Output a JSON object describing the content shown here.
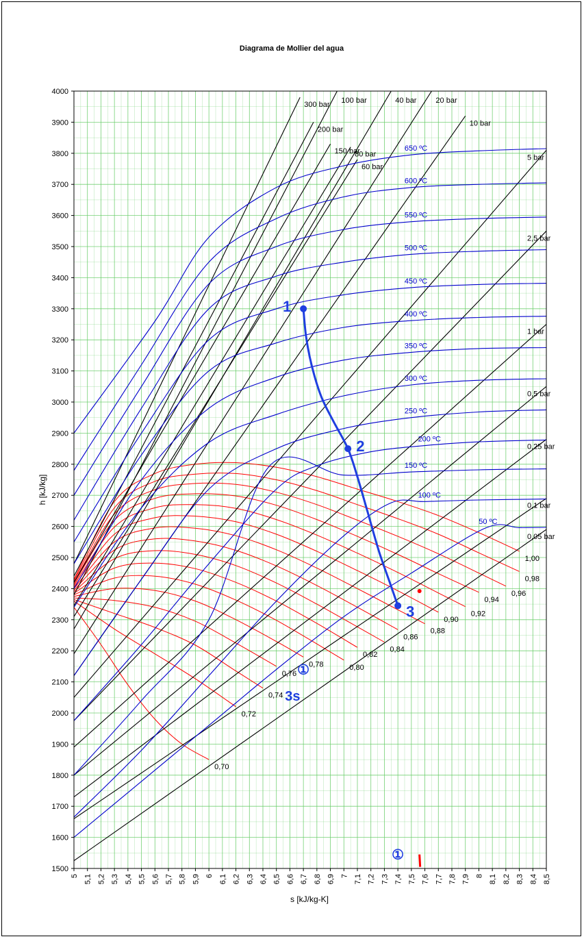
{
  "chart_data": {
    "type": "line",
    "title": "Diagrama de Mollier del agua",
    "xlabel": "s [kJ/kg-K]",
    "ylabel": "h [kJ/kg]",
    "xlim": [
      5,
      8.5
    ],
    "ylim": [
      1500,
      4000
    ],
    "x_ticks": [
      "5",
      "5,1",
      "5,2",
      "5,3",
      "5,4",
      "5,5",
      "5,6",
      "5,7",
      "5,8",
      "5,9",
      "6",
      "6,1",
      "6,2",
      "6,3",
      "6,4",
      "6,5",
      "6,6",
      "6,7",
      "6,8",
      "6,9",
      "7",
      "7,1",
      "7,2",
      "7,3",
      "7,4",
      "7,5",
      "7,6",
      "7,7",
      "7,8",
      "7,9",
      "8",
      "8,1",
      "8,2",
      "8,3",
      "8,4",
      "8,5"
    ],
    "y_ticks": [
      "1500",
      "1600",
      "1700",
      "1800",
      "1900",
      "2000",
      "2100",
      "2200",
      "2300",
      "2400",
      "2500",
      "2600",
      "2700",
      "2800",
      "2900",
      "3000",
      "3100",
      "3200",
      "3300",
      "3400",
      "3500",
      "3600",
      "3700",
      "3800",
      "3900",
      "4000"
    ],
    "grid": true,
    "colors": {
      "isobar": "#000000",
      "isotherm": "#0000cc",
      "quality": "#ff0000",
      "grid": "#66cc66",
      "process": "#1f3fe0"
    },
    "isobars": [
      {
        "name": "300 bar",
        "label": "300 bar",
        "x": [
          5.0,
          6.675
        ],
        "y": [
          2480,
          3980
        ]
      },
      {
        "name": "200 bar",
        "label": "200 bar",
        "x": [
          5.0,
          6.775
        ],
        "y": [
          2440,
          3900
        ]
      },
      {
        "name": "150 bar",
        "label": "150 bar",
        "x": [
          5.0,
          6.9
        ],
        "y": [
          2420,
          3830
        ]
      },
      {
        "name": "100 bar",
        "label": "100 bar",
        "x": [
          5.0,
          6.95
        ],
        "y": [
          2380,
          4000
        ]
      },
      {
        "name": "80 bar",
        "label": "80 bar",
        "x": [
          5.0,
          7.05
        ],
        "y": [
          2345,
          3820
        ]
      },
      {
        "name": "60 bar",
        "label": "60 bar",
        "x": [
          5.0,
          7.1
        ],
        "y": [
          2310,
          3780
        ]
      },
      {
        "name": "40 bar",
        "label": "40 bar",
        "x": [
          5.0,
          7.35
        ],
        "y": [
          2270,
          4000
        ]
      },
      {
        "name": "20 bar",
        "label": "20 bar",
        "x": [
          5.0,
          7.65
        ],
        "y": [
          2190,
          4000
        ]
      },
      {
        "name": "10 bar",
        "label": "10 bar",
        "x": [
          5.0,
          7.9
        ],
        "y": [
          2120,
          3920
        ]
      },
      {
        "name": "5 bar",
        "label": "5 bar",
        "x": [
          5.0,
          8.5
        ],
        "y": [
          2050,
          3810
        ]
      },
      {
        "name": "2,5 bar",
        "label": "2,5 bar",
        "x": [
          5.0,
          8.5
        ],
        "y": [
          1975,
          3550
        ]
      },
      {
        "name": "1 bar",
        "label": "1 bar",
        "x": [
          5.0,
          8.5
        ],
        "y": [
          1890,
          3250
        ]
      },
      {
        "name": "0,5 bar",
        "label": "0,5 bar",
        "x": [
          5.0,
          8.5
        ],
        "y": [
          1800,
          3050
        ]
      },
      {
        "name": "0,25 bar",
        "label": "0,25 bar",
        "x": [
          5.0,
          8.5
        ],
        "y": [
          1730,
          2880
        ]
      },
      {
        "name": "0,1 bar",
        "label": "0,1 bar",
        "x": [
          5.0,
          8.5
        ],
        "y": [
          1660,
          2690
        ]
      },
      {
        "name": "0,05 bar",
        "label": "0,05 bar",
        "x": [
          5.0,
          8.5
        ],
        "y": [
          1525,
          2590
        ]
      }
    ],
    "isotherms": [
      {
        "name": "650 ºC",
        "label": "650 ºC",
        "x": [
          5.0,
          5.6,
          6.0,
          6.5,
          7.0,
          7.5,
          8.0,
          8.5
        ],
        "y": [
          2900,
          3260,
          3530,
          3690,
          3760,
          3795,
          3808,
          3815
        ]
      },
      {
        "name": "600 ºC",
        "label": "600 ºC",
        "x": [
          5.0,
          5.5,
          6.0,
          6.5,
          7.0,
          7.5,
          8.0,
          8.5
        ],
        "y": [
          2780,
          3120,
          3450,
          3590,
          3660,
          3690,
          3700,
          3705
        ]
      },
      {
        "name": "550 ºC",
        "label": "550 ºC",
        "x": [
          5.0,
          5.5,
          6.0,
          6.5,
          7.0,
          7.5,
          8.0,
          8.5
        ],
        "y": [
          2700,
          3050,
          3380,
          3500,
          3555,
          3580,
          3590,
          3595
        ]
      },
      {
        "name": "500 ºC",
        "label": "500 ºC",
        "x": [
          5.0,
          5.5,
          6.0,
          6.5,
          7.0,
          7.5,
          8.0,
          8.5
        ],
        "y": [
          2620,
          2980,
          3300,
          3405,
          3450,
          3475,
          3485,
          3490
        ]
      },
      {
        "name": "450 ºC",
        "label": "450 ºC",
        "x": [
          5.0,
          5.5,
          6.0,
          6.5,
          7.0,
          7.5,
          8.0,
          8.5
        ],
        "y": [
          2550,
          2900,
          3200,
          3300,
          3345,
          3368,
          3378,
          3382
        ]
      },
      {
        "name": "400 ºC",
        "label": "400 ºC",
        "x": [
          5.0,
          5.5,
          6.0,
          6.5,
          7.0,
          7.5,
          8.0,
          8.5
        ],
        "y": [
          2480,
          2830,
          3100,
          3190,
          3240,
          3262,
          3272,
          3276
        ]
      },
      {
        "name": "350 ºC",
        "label": "350 ºC",
        "x": [
          5.0,
          5.5,
          6.0,
          6.5,
          7.0,
          7.5,
          8.0,
          8.5
        ],
        "y": [
          2400,
          2750,
          2980,
          3080,
          3135,
          3160,
          3172,
          3175
        ]
      },
      {
        "name": "300 ºC",
        "label": "300 ºC",
        "x": [
          5.0,
          5.5,
          6.0,
          6.5,
          7.0,
          7.5,
          8.0,
          8.5
        ],
        "y": [
          2340,
          2660,
          2870,
          2960,
          3020,
          3055,
          3070,
          3075
        ]
      },
      {
        "name": "250 ºC",
        "label": "250 ºC",
        "x": [
          5.0,
          5.5,
          6.0,
          6.5,
          7.0,
          7.5,
          8.0,
          8.5
        ],
        "y": [
          2120,
          2430,
          2720,
          2850,
          2915,
          2950,
          2968,
          2975
        ]
      },
      {
        "name": "200 ºC",
        "label": "200 ºC",
        "x": [
          5.0,
          5.5,
          6.0,
          6.5,
          6.8,
          7.2,
          7.6,
          8.0,
          8.5
        ],
        "y": [
          1975,
          2220,
          2480,
          2720,
          2795,
          2840,
          2860,
          2872,
          2878
        ]
      },
      {
        "name": "150 ºC",
        "label": "150 ºC",
        "x": [
          5.0,
          5.5,
          6.0,
          6.45,
          7.0,
          7.5,
          8.0,
          8.5
        ],
        "y": [
          1800,
          2040,
          2300,
          2795,
          2765,
          2775,
          2782,
          2785
        ]
      },
      {
        "name": "100 ºC",
        "label": "100 ºC",
        "x": [
          5.0,
          5.5,
          6.0,
          6.5,
          7.0,
          7.35,
          7.6,
          8.0,
          8.5
        ],
        "y": [
          1665,
          1880,
          2120,
          2360,
          2570,
          2676,
          2680,
          2685,
          2688
        ]
      },
      {
        "name": "50 ºC",
        "label": "50 ºC",
        "x": [
          5.0,
          5.5,
          6.0,
          6.5,
          7.0,
          7.5,
          8.05,
          8.3,
          8.5
        ],
        "y": [
          1600,
          1780,
          1960,
          2140,
          2310,
          2450,
          2595,
          2596,
          2597
        ]
      }
    ],
    "quality_lines": [
      {
        "name": "1,00",
        "label": "1,00",
        "x": [
          5.0,
          5.3,
          5.6,
          5.9,
          6.2,
          6.5,
          6.8,
          7.1,
          7.4,
          7.7,
          8.0,
          8.3
        ],
        "y": [
          2430,
          2680,
          2770,
          2800,
          2805,
          2790,
          2760,
          2720,
          2680,
          2635,
          2580,
          2520
        ]
      },
      {
        "name": "0,98",
        "label": "0,98",
        "x": [
          5.0,
          5.3,
          5.6,
          5.9,
          6.2,
          6.5,
          6.8,
          7.1,
          7.4,
          7.7,
          8.0,
          8.3
        ],
        "y": [
          2425,
          2660,
          2745,
          2768,
          2770,
          2750,
          2715,
          2670,
          2625,
          2575,
          2515,
          2455
        ]
      },
      {
        "name": "0,96",
        "label": "0,96",
        "x": [
          5.0,
          5.3,
          5.6,
          5.9,
          6.2,
          6.5,
          6.8,
          7.1,
          7.4,
          7.7,
          8.0,
          8.2
        ],
        "y": [
          2420,
          2640,
          2718,
          2738,
          2735,
          2710,
          2670,
          2620,
          2568,
          2512,
          2450,
          2408
        ]
      },
      {
        "name": "0,94",
        "label": "0,94",
        "x": [
          5.0,
          5.3,
          5.6,
          5.9,
          6.2,
          6.5,
          6.8,
          7.1,
          7.4,
          7.7,
          8.0
        ],
        "y": [
          2415,
          2620,
          2690,
          2705,
          2698,
          2668,
          2622,
          2568,
          2510,
          2448,
          2388
        ]
      },
      {
        "name": "0,92",
        "label": "0,92",
        "x": [
          5.0,
          5.3,
          5.6,
          5.9,
          6.2,
          6.5,
          6.8,
          7.1,
          7.4,
          7.7,
          7.9
        ],
        "y": [
          2410,
          2598,
          2660,
          2670,
          2658,
          2622,
          2572,
          2514,
          2452,
          2386,
          2342
        ]
      },
      {
        "name": "0,90",
        "label": "0,90",
        "x": [
          5.0,
          5.3,
          5.6,
          5.9,
          6.2,
          6.5,
          6.8,
          7.1,
          7.4,
          7.7
        ],
        "y": [
          2405,
          2575,
          2628,
          2633,
          2615,
          2575,
          2520,
          2458,
          2393,
          2324
        ]
      },
      {
        "name": "0,88",
        "label": "0,88",
        "x": [
          5.0,
          5.3,
          5.6,
          5.9,
          6.2,
          6.5,
          6.8,
          7.1,
          7.4,
          7.6
        ],
        "y": [
          2400,
          2550,
          2595,
          2594,
          2570,
          2525,
          2466,
          2400,
          2332,
          2287
        ]
      },
      {
        "name": "0,86",
        "label": "0,86",
        "x": [
          5.0,
          5.3,
          5.6,
          5.9,
          6.2,
          6.5,
          6.8,
          7.1,
          7.4
        ],
        "y": [
          2395,
          2524,
          2560,
          2553,
          2523,
          2473,
          2410,
          2340,
          2268
        ]
      },
      {
        "name": "0,84",
        "label": "0,84",
        "x": [
          5.0,
          5.3,
          5.6,
          5.9,
          6.2,
          6.5,
          6.8,
          7.1,
          7.3
        ],
        "y": [
          2390,
          2496,
          2522,
          2510,
          2474,
          2418,
          2350,
          2277,
          2228
        ]
      },
      {
        "name": "0,82",
        "label": "0,82",
        "x": [
          5.0,
          5.3,
          5.6,
          5.9,
          6.2,
          6.5,
          6.8,
          7.1
        ],
        "y": [
          2385,
          2466,
          2482,
          2464,
          2420,
          2360,
          2288,
          2211
        ]
      },
      {
        "name": "0,80",
        "label": "0,80",
        "x": [
          5.0,
          5.3,
          5.6,
          5.9,
          6.2,
          6.5,
          6.8,
          7.0
        ],
        "y": [
          2380,
          2434,
          2440,
          2414,
          2363,
          2298,
          2222,
          2170
        ]
      },
      {
        "name": "0,78",
        "label": "0,78",
        "x": [
          5.0,
          5.3,
          5.6,
          5.9,
          6.2,
          6.5,
          6.7
        ],
        "y": [
          2375,
          2400,
          2394,
          2360,
          2300,
          2230,
          2180
        ]
      },
      {
        "name": "0,76",
        "label": "0,76",
        "x": [
          5.0,
          5.3,
          5.6,
          5.9,
          6.2,
          6.5
        ],
        "y": [
          2370,
          2362,
          2340,
          2295,
          2225,
          2150
        ]
      },
      {
        "name": "0,74",
        "label": "0,74",
        "x": [
          5.0,
          5.3,
          5.6,
          5.9,
          6.2,
          6.4
        ],
        "y": [
          2365,
          2320,
          2275,
          2218,
          2135,
          2080
        ]
      },
      {
        "name": "0,72",
        "label": "0,72",
        "x": [
          5.0,
          5.3,
          5.6,
          5.9,
          6.2
        ],
        "y": [
          2360,
          2270,
          2190,
          2110,
          2020
        ]
      },
      {
        "name": "0,70",
        "label": "0,70",
        "x": [
          5.0,
          5.2,
          5.4,
          5.6,
          5.8,
          6.0
        ],
        "y": [
          2340,
          2220,
          2090,
          1980,
          1900,
          1850
        ]
      }
    ],
    "saturation_line": {
      "x": [
        5.0,
        5.3,
        5.6,
        5.9,
        6.2,
        6.5,
        6.8,
        7.1,
        7.4,
        7.7,
        8.0,
        8.3
      ],
      "y": [
        2430,
        2680,
        2770,
        2800,
        2805,
        2790,
        2760,
        2720,
        2680,
        2635,
        2580,
        2520
      ]
    },
    "process_path": {
      "x": [
        6.7,
        6.72,
        6.76,
        6.83,
        6.92,
        7.03,
        7.1,
        7.18,
        7.26,
        7.34,
        7.4
      ],
      "y": [
        3300,
        3210,
        3120,
        3020,
        2940,
        2850,
        2760,
        2640,
        2520,
        2420,
        2345
      ]
    },
    "process_points": [
      {
        "label": "1",
        "x": 6.7,
        "y": 3300
      },
      {
        "label": "2",
        "x": 7.03,
        "y": 2850
      },
      {
        "label": "3",
        "x": 7.4,
        "y": 2345
      }
    ],
    "annotations": [
      {
        "text": "3s",
        "x": 6.62,
        "y": 2040,
        "color": "#1f3fe0"
      },
      {
        "text": "①",
        "x": 6.7,
        "y": 2125,
        "color": "#1f3fe0"
      },
      {
        "text": "①",
        "x": 7.4,
        "y": 1530,
        "color": "#1f3fe0"
      }
    ]
  }
}
